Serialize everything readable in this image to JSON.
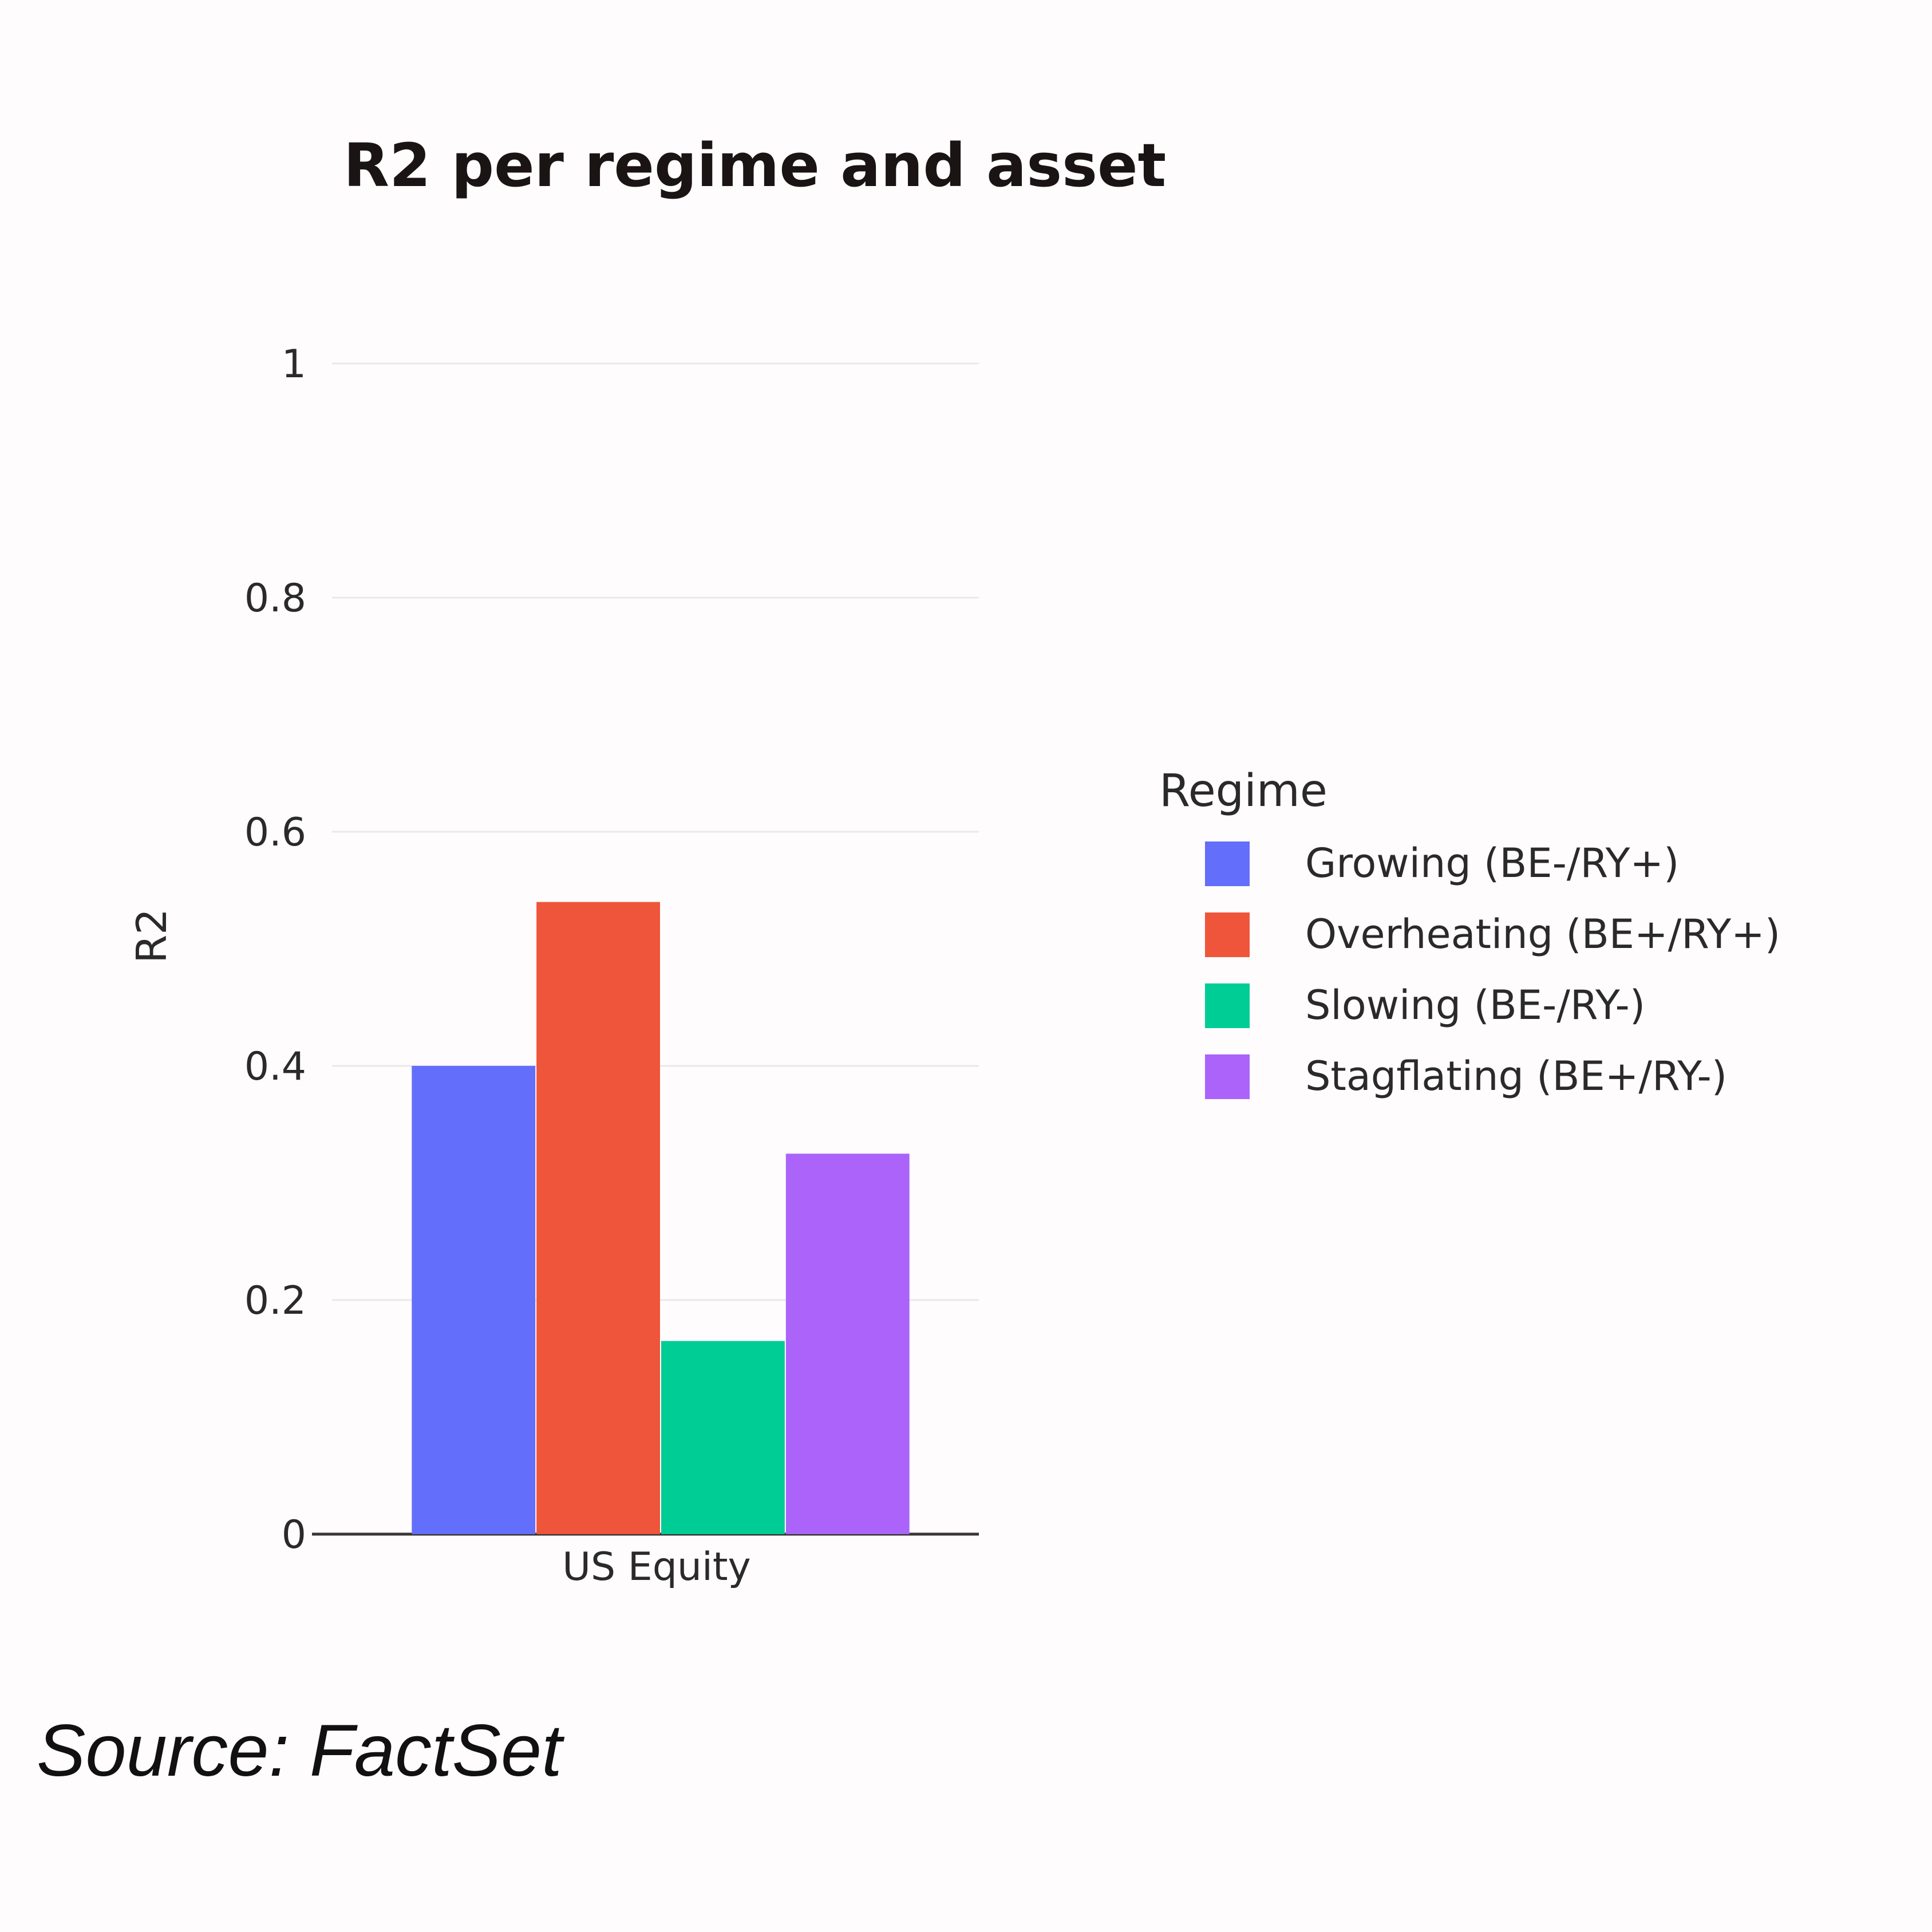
{
  "chart_data": {
    "type": "bar",
    "title": "R2 per regime and asset",
    "xlabel": "",
    "ylabel": "R2",
    "categories": [
      "US Equity"
    ],
    "ylim": [
      0,
      1
    ],
    "yticks": [
      "0",
      "0.2",
      "0.4",
      "0.6",
      "0.8",
      "1"
    ],
    "grid": true,
    "legend_title": "Regime",
    "legend_position": "right",
    "series": [
      {
        "name": "Growing (BE-/RY+)",
        "values": [
          0.4
        ],
        "color": "#636efa"
      },
      {
        "name": "Overheating (BE+/RY+)",
        "values": [
          0.54
        ],
        "color": "#ef553b"
      },
      {
        "name": "Slowing (BE-/RY-)",
        "values": [
          0.165
        ],
        "color": "#00cc96"
      },
      {
        "name": "Stagflating (BE+/RY-)",
        "values": [
          0.325
        ],
        "color": "#ab63fa"
      }
    ]
  },
  "footer": {
    "source": "Source: FactSet"
  }
}
